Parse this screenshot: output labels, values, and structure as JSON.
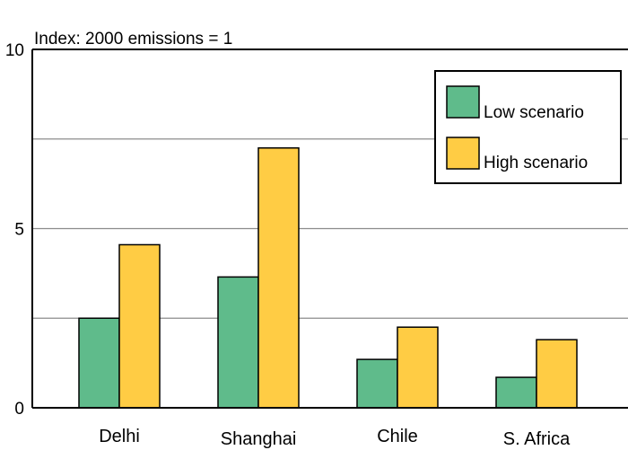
{
  "chart_data": {
    "type": "bar",
    "title": "",
    "subtitle": "Index: 2000 emissions = 1",
    "xlabel": "",
    "ylabel": "",
    "ylim": [
      0,
      10
    ],
    "yticks": [
      "0",
      "5",
      "10"
    ],
    "minor_gridlines": [
      2.5,
      7.5
    ],
    "grid": true,
    "legend_position": "top-right",
    "categories": [
      "Delhi",
      "Shanghai",
      "Chile",
      "S. Africa"
    ],
    "series": [
      {
        "name": "Low scenario",
        "color": "#5fbb8b",
        "values": [
          2.5,
          3.65,
          1.35,
          0.85
        ]
      },
      {
        "name": "High scenario",
        "color": "#ffcc44",
        "values": [
          4.55,
          7.25,
          2.25,
          1.9
        ]
      }
    ]
  }
}
